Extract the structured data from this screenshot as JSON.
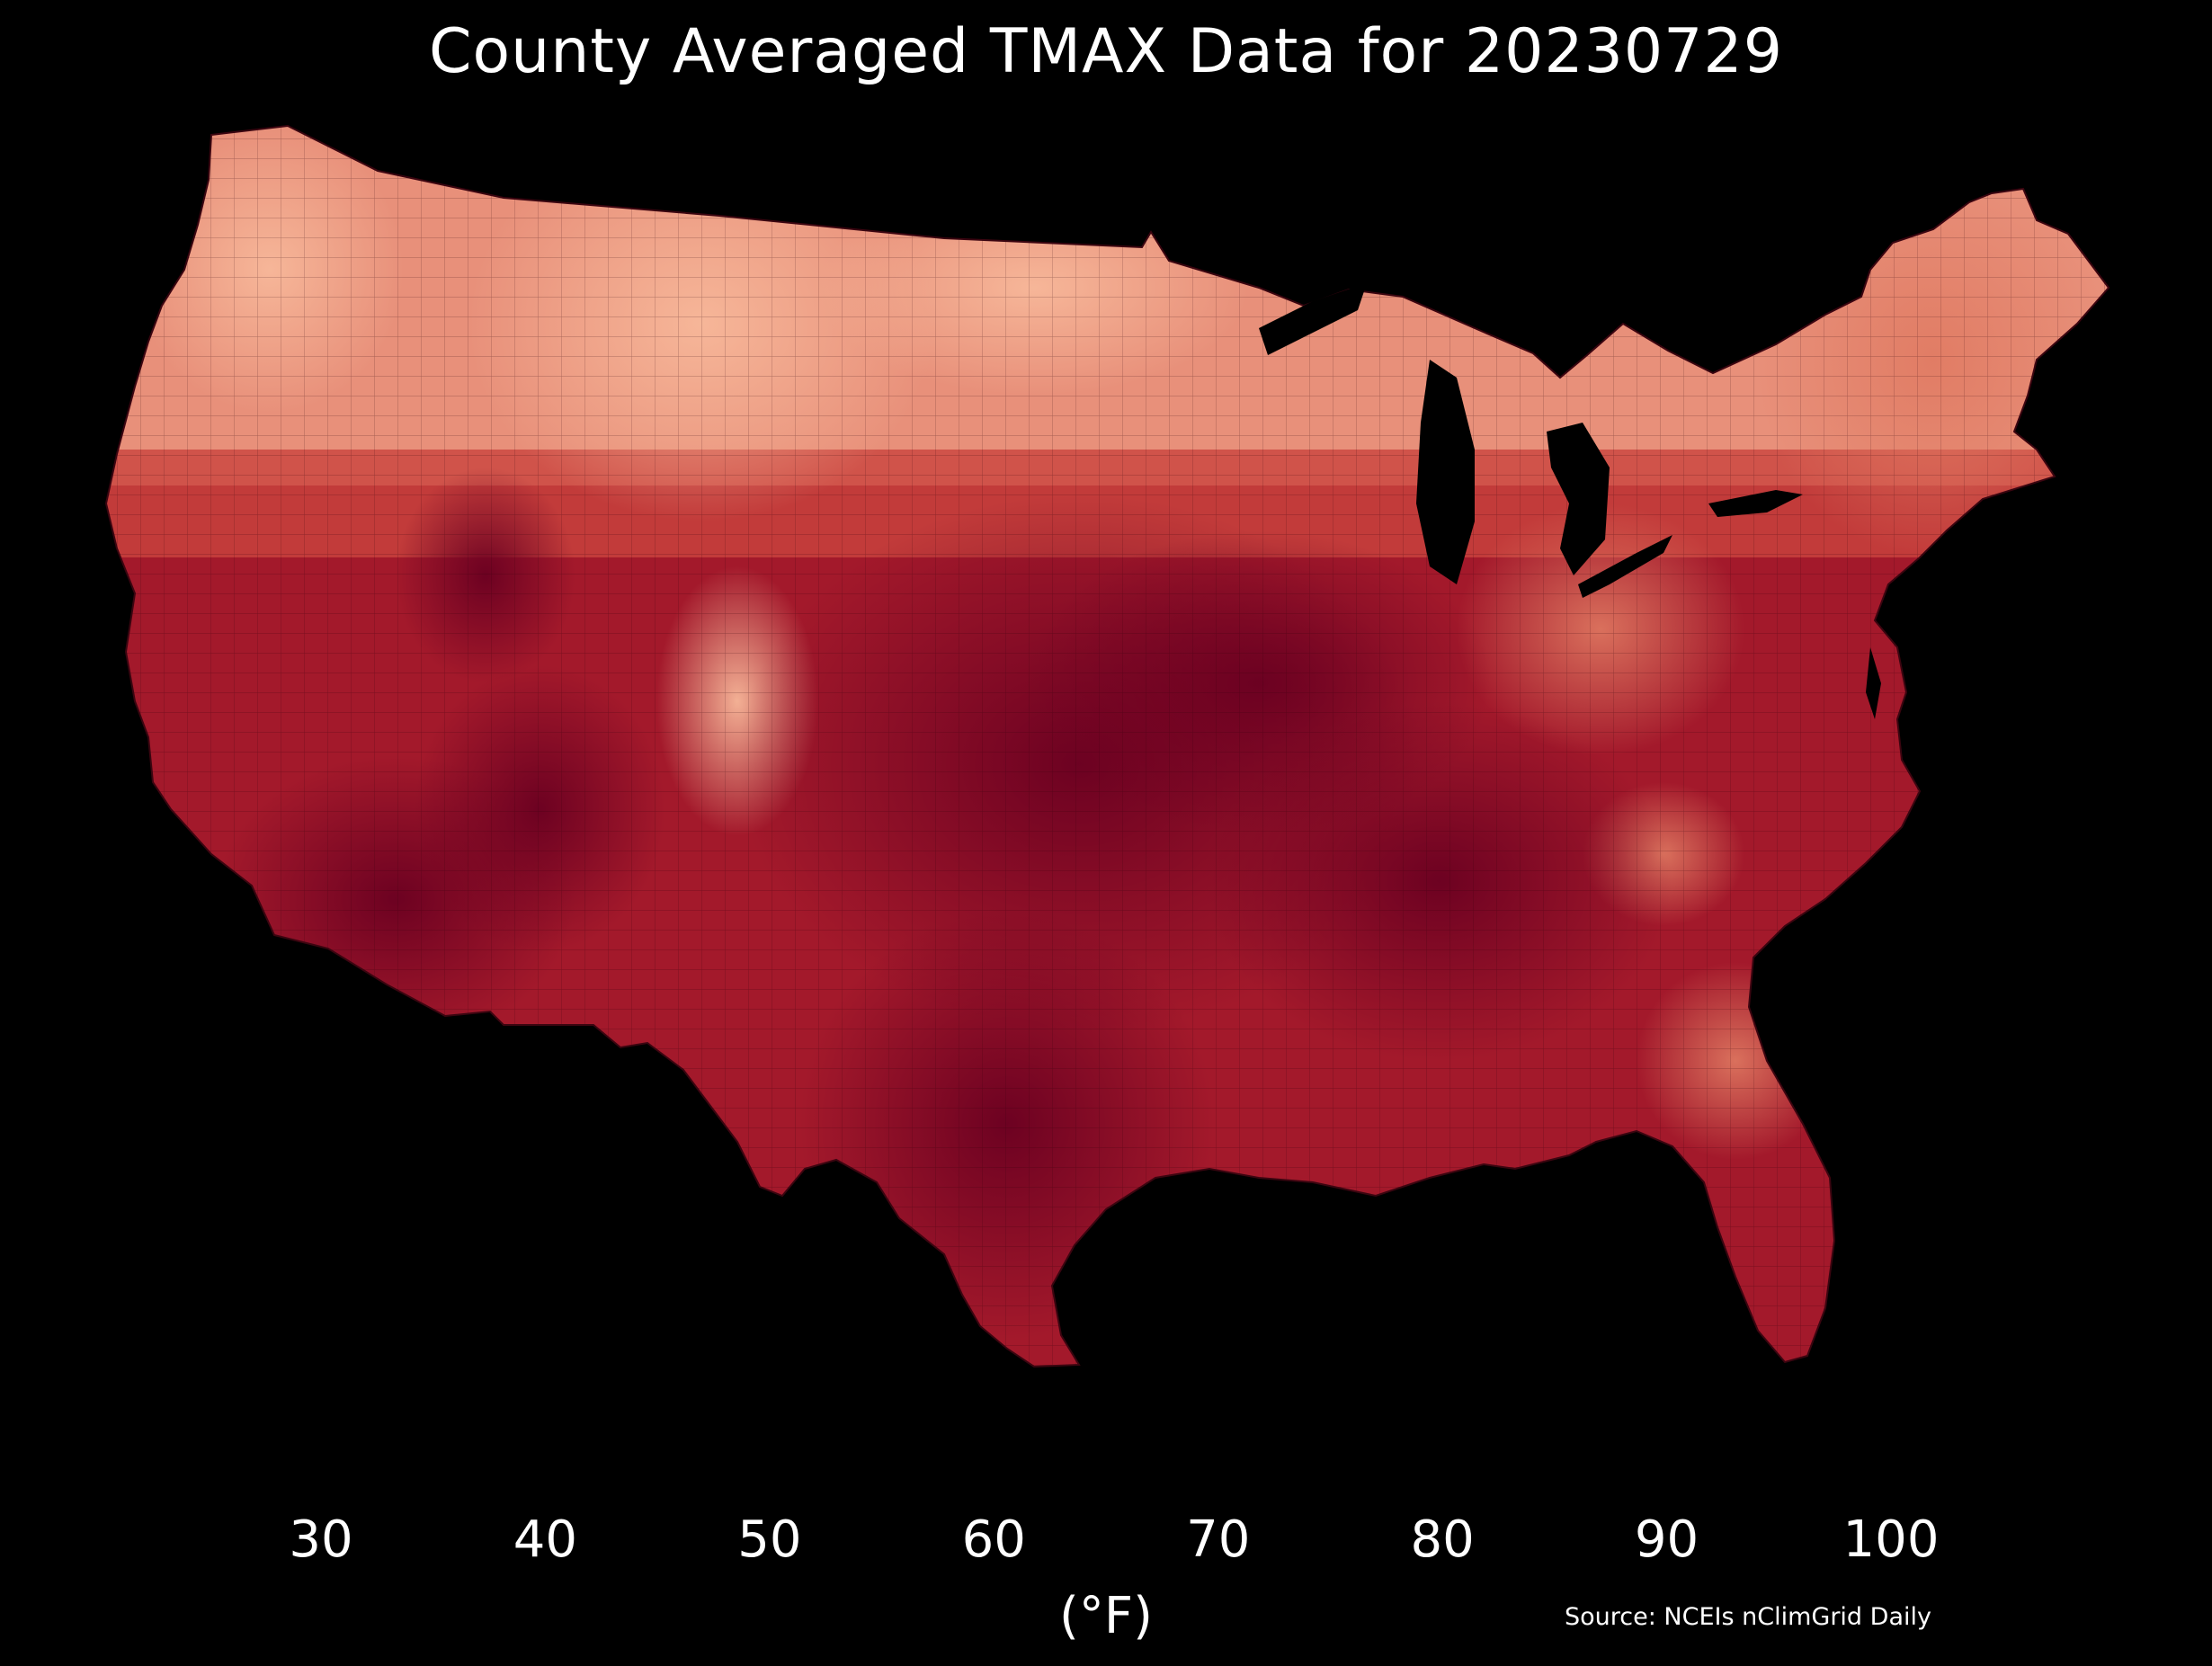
{
  "title": "County Averaged TMAX Data for 20230729",
  "colorbar": {
    "ticks": [
      "30",
      "40",
      "50",
      "60",
      "70",
      "80",
      "90",
      "100"
    ],
    "bins": [
      {
        "from": 30,
        "to": 40,
        "color": "#1b5a9c"
      },
      {
        "from": 40,
        "to": 50,
        "color": "#4d9ac8"
      },
      {
        "from": 50,
        "to": 60,
        "color": "#b8d9ea"
      },
      {
        "from": 60,
        "to": 70,
        "color": "#f6f6f6"
      },
      {
        "from": 70,
        "to": 80,
        "color": "#f8c3a7"
      },
      {
        "from": 80,
        "to": 90,
        "color": "#dc6751"
      },
      {
        "from": 90,
        "to": 100,
        "color": "#a01726"
      }
    ],
    "under_color": "#0d3365",
    "over_color": "#680020",
    "unit": "(°F)"
  },
  "source": "Source: NCEIs nClimGrid Daily",
  "colors": {
    "background": "#000000",
    "lakes": "#000000"
  }
}
